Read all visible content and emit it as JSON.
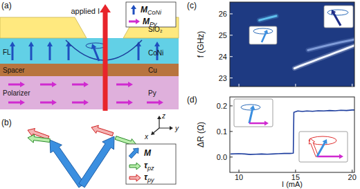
{
  "panel_labels": [
    "(a)",
    "(b)",
    "(c)",
    "(d)"
  ],
  "diagram_a": {
    "current_label": "applied I",
    "layer_labels_left": [
      "FL",
      "Spacer",
      "Polarizer"
    ],
    "layer_labels_right": [
      "SiO₂",
      "CoNi",
      "Cu",
      "Py"
    ],
    "legend": [
      {
        "symbol": "M",
        "subscript": "CoNi"
      },
      {
        "symbol": "M",
        "subscript": "Py"
      }
    ],
    "axes": [
      "x",
      "y",
      "z"
    ]
  },
  "diagram_b": {
    "legend": [
      {
        "symbol": "M"
      },
      {
        "symbol": "τ",
        "subscript": "pz"
      },
      {
        "symbol": "τ",
        "subscript": "py"
      }
    ]
  },
  "chart_data": [
    {
      "type": "line",
      "y_label": "f (GHz)",
      "xlim": [
        9.2,
        20.2
      ],
      "ylim": [
        22.6,
        26.55
      ],
      "xticks": [
        10,
        15,
        20
      ],
      "yticks": [
        23,
        24,
        25,
        26
      ],
      "tick_labels": "y",
      "series": [
        {
          "color": "#5fc0ee",
          "x": [
            11.8,
            12.3,
            12.8,
            13.3
          ],
          "values": [
            25.7,
            25.77,
            25.84,
            25.9
          ]
        },
        {
          "color": "#f0f4ff",
          "x": [
            14.9,
            15.5,
            16,
            16.5,
            17,
            17.5,
            18,
            18.5,
            19,
            19.5,
            20,
            20.2
          ],
          "values": [
            23.45,
            23.58,
            23.68,
            23.78,
            23.88,
            23.98,
            24.08,
            24.18,
            24.28,
            24.38,
            24.48,
            24.52
          ]
        },
        {
          "color": "#7f9bd8",
          "x": [
            16.1,
            17,
            18,
            19,
            20.2
          ],
          "values": [
            24.3,
            24.42,
            24.55,
            24.67,
            24.8
          ]
        }
      ]
    },
    {
      "type": "line",
      "x_label": "I (mA)",
      "y_label": "ΔR (Ω)",
      "xlim": [
        9.2,
        20.2
      ],
      "ylim": [
        -0.06,
        0.235
      ],
      "xticks": [
        10,
        15,
        20
      ],
      "yticks": [
        {
          "value": 0,
          "label": "0.0"
        },
        {
          "value": 0.1,
          "label": "0.1"
        },
        {
          "value": 0.2,
          "label": "0.2"
        }
      ],
      "series": [
        {
          "color": "#1f3f9f",
          "x": [
            9.3,
            10,
            10.5,
            11,
            11.5,
            12,
            12.5,
            13,
            13.5,
            14,
            14.5,
            14.8,
            14.85,
            15.2,
            15.6,
            16,
            16.5,
            17,
            17.5,
            18,
            18.5,
            19,
            19.5,
            20,
            20.2
          ],
          "values": [
            0.012,
            0.013,
            0.012,
            0.01,
            0.011,
            0.012,
            0.011,
            0.012,
            0.013,
            0.014,
            0.014,
            0.015,
            0.175,
            0.18,
            0.178,
            0.18,
            0.179,
            0.181,
            0.18,
            0.182,
            0.181,
            0.183,
            0.182,
            0.184,
            0.184
          ]
        }
      ]
    }
  ]
}
